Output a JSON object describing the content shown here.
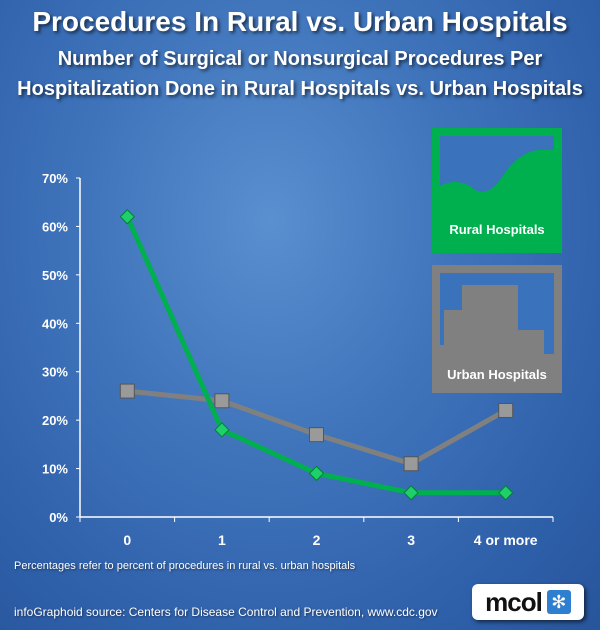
{
  "header": {
    "title": "Procedures In Rural vs. Urban Hospitals",
    "subtitle": "Number of Surgical or Nonsurgical Procedures Per Hospitalization Done in Rural Hospitals vs. Urban Hospitals"
  },
  "chart_data": {
    "type": "line",
    "title": "Procedures In Rural vs. Urban Hospitals",
    "categories": [
      "0",
      "1",
      "2",
      "3",
      "4 or more"
    ],
    "yticks": [
      "0%",
      "10%",
      "20%",
      "30%",
      "40%",
      "50%",
      "60%",
      "70%"
    ],
    "ylim": [
      0,
      70
    ],
    "grid": false,
    "legend_position": "right",
    "series": [
      {
        "name": "Rural Hospitals",
        "values": [
          62,
          18,
          9,
          5,
          5
        ],
        "color": "#00b04f",
        "marker": "diamond"
      },
      {
        "name": "Urban Hospitals",
        "values": [
          26,
          24,
          17,
          11,
          22
        ],
        "color": "#808080",
        "marker": "square"
      }
    ]
  },
  "footer": {
    "note": "Percentages refer to percent of procedures in rural vs. urban hospitals",
    "source": "infoGraphoid source:   Centers for Disease Control and Prevention, www.cdc.gov"
  },
  "logo": {
    "text": "mcol",
    "icon": "asterisk-icon"
  }
}
